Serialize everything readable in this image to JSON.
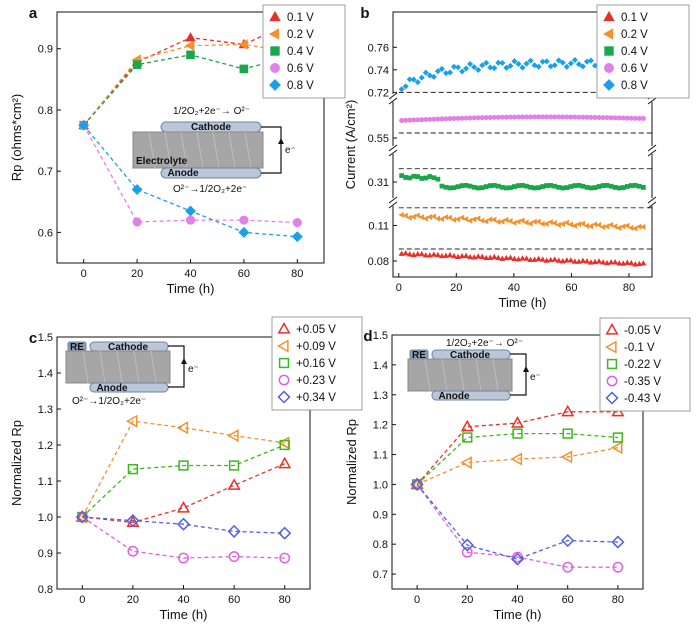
{
  "chart_data": [
    {
      "panel": "a",
      "type": "line",
      "xlabel": "Time (h)",
      "ylabel": "Rp (ohms*cm²)",
      "xlim": [
        -10,
        90
      ],
      "ylim": [
        0.55,
        0.96
      ],
      "xticks": [
        0,
        20,
        40,
        60,
        80
      ],
      "yticks": [
        0.6,
        0.7,
        0.8,
        0.9
      ],
      "legend": "top-right",
      "x": [
        0,
        20,
        40,
        60,
        80
      ],
      "series": [
        {
          "name": "0.1 V",
          "marker": "triangle-up",
          "color": "#e8302a",
          "values": [
            0.775,
            0.878,
            0.918,
            0.907,
            0.947
          ]
        },
        {
          "name": "0.2 V",
          "marker": "triangle-left",
          "color": "#f5912c",
          "values": [
            0.775,
            0.882,
            0.905,
            0.907,
            0.893
          ]
        },
        {
          "name": "0.4 V",
          "marker": "square",
          "color": "#1aa64a",
          "values": [
            0.775,
            0.874,
            0.89,
            0.867,
            0.89
          ]
        },
        {
          "name": "0.6 V",
          "marker": "circle",
          "color": "#e080e8",
          "values": [
            0.775,
            0.617,
            0.62,
            0.62,
            0.616
          ]
        },
        {
          "name": "0.8 V",
          "marker": "diamond",
          "color": "#1aa0e8",
          "values": [
            0.775,
            0.67,
            0.635,
            0.6,
            0.593
          ]
        }
      ],
      "inset": {
        "reaction_top": "1/2O₂+2e⁻→ O²⁻",
        "cathode": "Cathode",
        "electrolyte": "Electrolyte",
        "anode": "Anode",
        "reaction_bottom": "O²⁻→1/2O₂+2e⁻",
        "electron": "e⁻"
      }
    },
    {
      "panel": "b",
      "type": "scatter",
      "xlabel": "Time (h)",
      "ylabel": "Current (A/cm²)",
      "xlim": [
        -2,
        88
      ],
      "xticks": [
        0,
        20,
        40,
        60,
        80
      ],
      "yticks": [
        0.08,
        0.11,
        0.31,
        0.55,
        0.72,
        0.74,
        0.76
      ],
      "broken_axis": true,
      "legend": "top-right",
      "series": [
        {
          "name": "0.1 V",
          "marker": "triangle-up",
          "color": "#e8302a",
          "start": 0.086,
          "end": 0.0775
        },
        {
          "name": "0.2 V",
          "marker": "triangle-left",
          "color": "#f5912c",
          "start": 0.118,
          "end": 0.108
        },
        {
          "name": "0.4 V",
          "marker": "square",
          "color": "#1aa64a",
          "start": 0.318,
          "end": 0.305
        },
        {
          "name": "0.6 V",
          "marker": "circle",
          "color": "#e080e8",
          "start": 0.585,
          "end": 0.59
        },
        {
          "name": "0.8 V",
          "marker": "diamond",
          "color": "#1aa0e8",
          "start": 0.725,
          "end": 0.746
        }
      ]
    },
    {
      "panel": "c",
      "type": "line",
      "xlabel": "Time (h)",
      "ylabel": "Normalized Rp",
      "xlim": [
        -10,
        90
      ],
      "ylim": [
        0.8,
        1.5
      ],
      "xticks": [
        0,
        20,
        40,
        60,
        80
      ],
      "yticks": [
        0.8,
        0.9,
        1.0,
        1.1,
        1.2,
        1.3,
        1.4,
        1.5
      ],
      "legend": "top-right",
      "x": [
        0,
        20,
        40,
        60,
        80
      ],
      "series": [
        {
          "name": "+0.05 V",
          "marker": "triangle-up",
          "color": "#e8302a",
          "values": [
            1.0,
            0.985,
            1.025,
            1.088,
            1.148
          ]
        },
        {
          "name": "+0.09 V",
          "marker": "triangle-left",
          "color": "#f5912c",
          "values": [
            1.0,
            1.266,
            1.248,
            1.226,
            1.206
          ]
        },
        {
          "name": "+0.16 V",
          "marker": "square",
          "color": "#3cb81a",
          "values": [
            1.0,
            1.133,
            1.143,
            1.143,
            1.2
          ]
        },
        {
          "name": "+0.23 V",
          "marker": "circle",
          "color": "#e060e0",
          "values": [
            1.0,
            0.905,
            0.886,
            0.89,
            0.886
          ]
        },
        {
          "name": "+0.34 V",
          "marker": "diamond",
          "color": "#5060e0",
          "values": [
            1.0,
            0.99,
            0.98,
            0.96,
            0.955
          ]
        }
      ],
      "inset": {
        "re": "RE",
        "cathode": "Cathode",
        "anode": "Anode",
        "reaction_bottom": "O²⁻→1/2O₂+2e⁻",
        "electron": "e⁻"
      }
    },
    {
      "panel": "d",
      "type": "line",
      "xlabel": "Time (h)",
      "ylabel": "Normalized Rp",
      "xlim": [
        -10,
        90
      ],
      "ylim": [
        0.65,
        1.5
      ],
      "xticks": [
        0,
        20,
        40,
        60,
        80
      ],
      "yticks": [
        0.7,
        0.8,
        0.9,
        1.0,
        1.1,
        1.2,
        1.3,
        1.4,
        1.5
      ],
      "legend": "top-right",
      "x": [
        0,
        20,
        40,
        60,
        80
      ],
      "series": [
        {
          "name": "-0.05 V",
          "marker": "triangle-up",
          "color": "#e8302a",
          "values": [
            1.0,
            1.193,
            1.205,
            1.243,
            1.243
          ]
        },
        {
          "name": "-0.1 V",
          "marker": "triangle-left",
          "color": "#f5912c",
          "values": [
            1.0,
            1.073,
            1.085,
            1.092,
            1.123
          ]
        },
        {
          "name": "-0.22 V",
          "marker": "square",
          "color": "#3cb81a",
          "values": [
            1.0,
            1.157,
            1.17,
            1.17,
            1.157
          ]
        },
        {
          "name": "-0.35 V",
          "marker": "circle",
          "color": "#e060e0",
          "values": [
            1.0,
            0.773,
            0.757,
            0.723,
            0.723
          ]
        },
        {
          "name": "-0.43 V",
          "marker": "diamond",
          "color": "#5060e0",
          "values": [
            1.0,
            0.797,
            0.75,
            0.812,
            0.807
          ]
        }
      ],
      "inset": {
        "reaction_top": "1/2O₂+2e⁻→ O²⁻",
        "re": "RE",
        "cathode": "Cathode",
        "anode": "Anode",
        "electron": "e⁻"
      }
    }
  ]
}
